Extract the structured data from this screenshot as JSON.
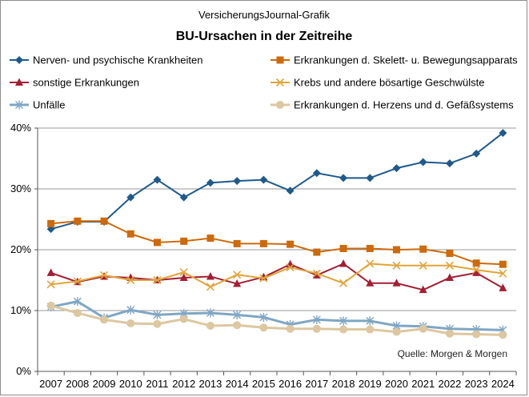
{
  "subtitle": "VersicherungsJournal-Grafik",
  "title": "BU-Ursachen  in der Zeitreihe",
  "source": "Quelle:  Morgen  & Morgen",
  "chart_data": {
    "type": "line",
    "title": "BU-Ursachen  in der Zeitreihe",
    "subtitle": "VersicherungsJournal-Grafik",
    "xlabel": "",
    "ylabel": "",
    "x": [
      2007,
      2008,
      2009,
      2010,
      2011,
      2012,
      2013,
      2014,
      2015,
      2016,
      2017,
      2018,
      2019,
      2020,
      2021,
      2022,
      2023,
      2024
    ],
    "ylim": [
      0,
      40
    ],
    "yticks": [
      "0%",
      "10%",
      "20%",
      "30%",
      "40%"
    ],
    "grid": true,
    "legend": "top",
    "series": [
      {
        "name": "Nerven- und psychische Krankheiten",
        "color": "#1f5a8c",
        "marker": "diamond",
        "values": [
          23.4,
          24.6,
          24.6,
          28.6,
          31.5,
          28.6,
          31.0,
          31.3,
          31.5,
          29.7,
          32.6,
          31.8,
          31.8,
          33.4,
          34.4,
          34.2,
          35.8,
          39.2
        ]
      },
      {
        "name": "Erkrankungen d. Skelett- u. Bewegungsapparats",
        "color": "#cc6a0c",
        "marker": "square",
        "values": [
          24.3,
          24.7,
          24.7,
          22.6,
          21.2,
          21.4,
          21.9,
          21.0,
          21.0,
          20.9,
          19.6,
          20.2,
          20.2,
          20.0,
          20.1,
          19.4,
          17.8,
          17.6
        ]
      },
      {
        "name": "sonstige Erkrankungen",
        "color": "#a31f34",
        "marker": "triangle",
        "values": [
          16.2,
          14.7,
          15.6,
          15.4,
          15.0,
          15.4,
          15.6,
          14.4,
          15.5,
          17.6,
          15.8,
          17.7,
          14.5,
          14.5,
          13.4,
          15.4,
          16.2,
          13.7
        ]
      },
      {
        "name": "Krebs und andere bösartige Geschwülste",
        "color": "#e0a43a",
        "marker": "x",
        "values": [
          14.3,
          14.8,
          15.8,
          15.0,
          15.0,
          16.3,
          13.9,
          15.9,
          15.3,
          17.1,
          16.1,
          14.5,
          17.7,
          17.4,
          17.4,
          17.4,
          16.7,
          16.1
        ]
      },
      {
        "name": "Unfälle",
        "color": "#7fa6c4",
        "marker": "star",
        "values": [
          10.6,
          11.5,
          8.8,
          10.1,
          9.3,
          9.5,
          9.6,
          9.3,
          8.9,
          7.7,
          8.5,
          8.3,
          8.3,
          7.5,
          7.4,
          7.0,
          6.9,
          6.8
        ]
      },
      {
        "name": "Erkrankungen d. Herzens und d. Gefäßsystems",
        "color": "#dcc7a0",
        "marker": "circle",
        "values": [
          10.8,
          9.6,
          8.5,
          7.9,
          7.8,
          8.6,
          7.5,
          7.6,
          7.2,
          7.0,
          7.0,
          6.9,
          6.9,
          6.5,
          7.0,
          6.2,
          6.1,
          6.0
        ]
      }
    ]
  }
}
